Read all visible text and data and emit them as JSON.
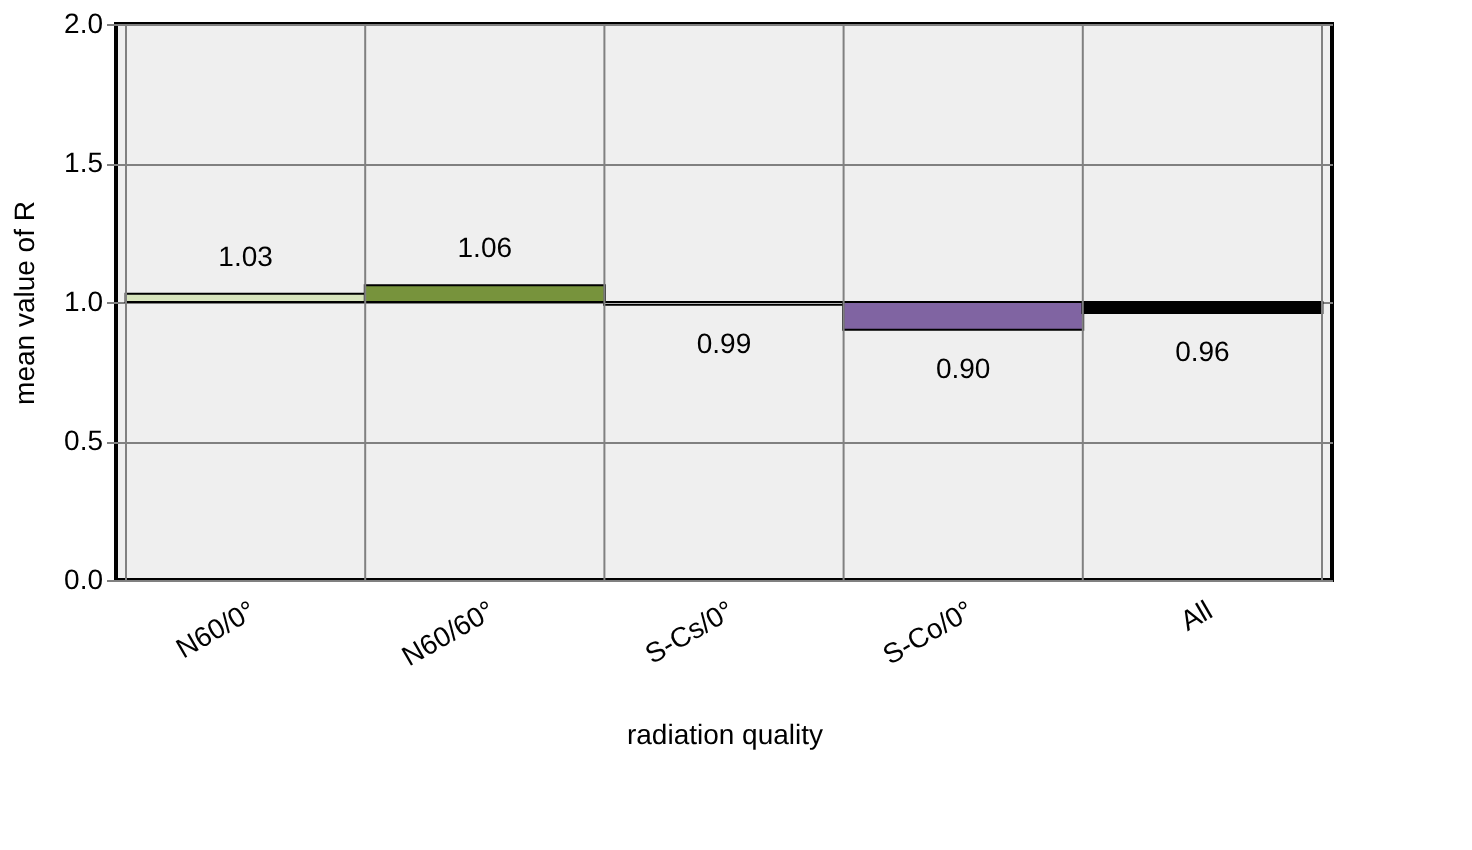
{
  "chart_data": {
    "type": "bar",
    "categories": [
      "N60/0°",
      "N60/60°",
      "S-Cs/0°",
      "S-Co/0°",
      "All"
    ],
    "base": [
      1.0,
      1.0,
      1.0,
      1.0,
      1.0
    ],
    "values": [
      0.03,
      0.06,
      -0.01,
      -0.1,
      -0.04
    ],
    "value_labels": [
      "1.03",
      "1.06",
      "0.99",
      "0.90",
      "0.96"
    ],
    "colors": [
      "#d7e4bd",
      "#77933c",
      "#f2f2f2",
      "#8064a2",
      "#000000"
    ],
    "xlabel": "radiation quality",
    "ylabel": "mean value of  R",
    "ylim": [
      0.0,
      2.0
    ],
    "yticks": [
      {
        "value": 0.0,
        "label": "0.0"
      },
      {
        "value": 0.5,
        "label": "0.5"
      },
      {
        "value": 1.0,
        "label": "1.0"
      },
      {
        "value": 1.5,
        "label": "1.5"
      },
      {
        "value": 2.0,
        "label": "2.0"
      }
    ],
    "grid": true,
    "legend": false
  }
}
